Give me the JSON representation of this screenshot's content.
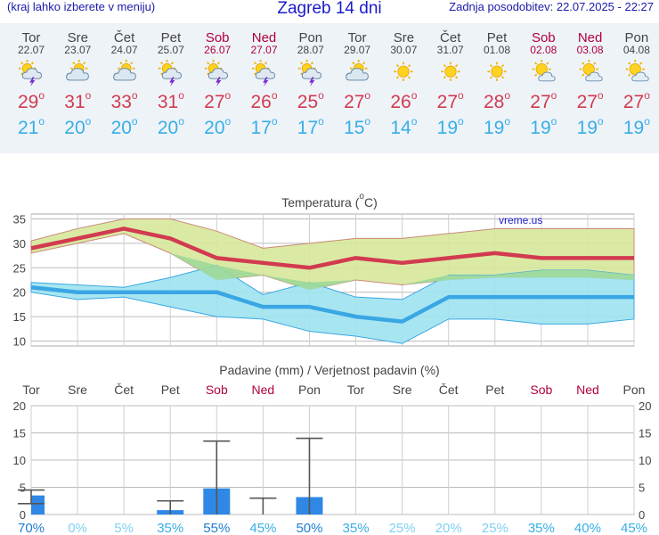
{
  "header": {
    "left_link": "(kraj lahko izberete v meniju)",
    "title": "Zagreb 14 dni",
    "updated": "Zadnja posodobitev: 22.07.2025 - 22:27"
  },
  "days": [
    {
      "name": "Tor",
      "date": "22.07",
      "weekend": false,
      "icon": "thunderstorm-sun-icon",
      "tmax": "29",
      "tmin": "21"
    },
    {
      "name": "Sre",
      "date": "23.07",
      "weekend": false,
      "icon": "cloudy-sun-icon",
      "tmax": "31",
      "tmin": "20"
    },
    {
      "name": "Čet",
      "date": "24.07",
      "weekend": false,
      "icon": "cloudy-sun-icon",
      "tmax": "33",
      "tmin": "20"
    },
    {
      "name": "Pet",
      "date": "25.07",
      "weekend": false,
      "icon": "thunderstorm-sun-icon",
      "tmax": "31",
      "tmin": "20"
    },
    {
      "name": "Sob",
      "date": "26.07",
      "weekend": true,
      "icon": "thunderstorm-sun-icon",
      "tmax": "27",
      "tmin": "20"
    },
    {
      "name": "Ned",
      "date": "27.07",
      "weekend": true,
      "icon": "thunderstorm-sun-icon",
      "tmax": "26",
      "tmin": "17"
    },
    {
      "name": "Pon",
      "date": "28.07",
      "weekend": false,
      "icon": "thunderstorm-sun-icon",
      "tmax": "25",
      "tmin": "17"
    },
    {
      "name": "Tor",
      "date": "29.07",
      "weekend": false,
      "icon": "cloudy-sun-icon",
      "tmax": "27",
      "tmin": "15"
    },
    {
      "name": "Sre",
      "date": "30.07",
      "weekend": false,
      "icon": "sun-icon",
      "tmax": "26",
      "tmin": "14"
    },
    {
      "name": "Čet",
      "date": "31.07",
      "weekend": false,
      "icon": "sun-icon",
      "tmax": "27",
      "tmin": "19"
    },
    {
      "name": "Pet",
      "date": "01.08",
      "weekend": false,
      "icon": "sun-icon",
      "tmax": "28",
      "tmin": "19"
    },
    {
      "name": "Sob",
      "date": "02.08",
      "weekend": true,
      "icon": "partly-cloudy-sun-icon",
      "tmax": "27",
      "tmin": "19"
    },
    {
      "name": "Ned",
      "date": "03.08",
      "weekend": true,
      "icon": "partly-cloudy-sun-icon",
      "tmax": "27",
      "tmin": "19"
    },
    {
      "name": "Pon",
      "date": "04.08",
      "weekend": false,
      "icon": "partly-cloudy-sun-icon",
      "tmax": "27",
      "tmin": "19"
    }
  ],
  "degree_symbol": "o",
  "temp_chart": {
    "title": "Temperatura (",
    "title_deg": "o",
    "title_unit": "C)",
    "watermark": "vreme.us"
  },
  "precip_chart": {
    "title": "Padavine (mm) / Verjetnost padavin (%)"
  },
  "colors": {
    "tmax_line": "#d23b4f",
    "tmin_line": "#3aa6e4",
    "tmax_band": "#d6e89a",
    "tmin_band": "#9de3ef",
    "overlap_band": "#9ed898",
    "bar": "#2f88e6",
    "prob_high": "#1f7ed0",
    "prob_low": "#7fd0f2",
    "weekend": "#b0003a"
  },
  "chart_data": [
    {
      "type": "line",
      "title": "Temperatura (°C)",
      "categories": [
        "22.07",
        "23.07",
        "24.07",
        "25.07",
        "26.07",
        "27.07",
        "28.07",
        "29.07",
        "30.07",
        "31.07",
        "01.08",
        "02.08",
        "03.08",
        "04.08"
      ],
      "ylim": [
        9,
        36
      ],
      "yticks": [
        10,
        15,
        20,
        25,
        30,
        35
      ],
      "grid": true,
      "series": [
        {
          "name": "tmax",
          "values": [
            29,
            31,
            33,
            31,
            27,
            26,
            25,
            27,
            26,
            27,
            28,
            27,
            27,
            27
          ]
        },
        {
          "name": "tmax_high",
          "values": [
            30.5,
            33,
            35,
            35,
            32.5,
            29,
            30,
            31,
            31,
            32,
            33,
            33,
            33,
            33
          ]
        },
        {
          "name": "tmax_low",
          "values": [
            28,
            30,
            32,
            28,
            22.5,
            23.5,
            20.5,
            22.5,
            21.5,
            22.5,
            23,
            23,
            23,
            22.5
          ]
        },
        {
          "name": "tmin",
          "values": [
            21,
            20,
            20,
            20,
            20,
            17,
            17,
            15,
            14,
            19,
            19,
            19,
            19,
            19
          ]
        },
        {
          "name": "tmin_high",
          "values": [
            22,
            21.5,
            21,
            23,
            25.5,
            19.5,
            22,
            19,
            18.5,
            23.5,
            23.5,
            24.5,
            24.5,
            23.5
          ]
        },
        {
          "name": "tmin_low",
          "values": [
            20,
            18.5,
            19,
            17,
            15,
            14.5,
            12,
            11,
            9.5,
            14.5,
            14.5,
            13.5,
            13.5,
            14.5
          ]
        }
      ]
    },
    {
      "type": "bar",
      "title": "Padavine (mm) / Verjetnost padavin (%)",
      "categories": [
        "Tor",
        "Sre",
        "Čet",
        "Pet",
        "Sob",
        "Ned",
        "Pon",
        "Tor",
        "Sre",
        "Čet",
        "Pet",
        "Sob",
        "Ned",
        "Pon"
      ],
      "weekend": [
        false,
        false,
        false,
        false,
        true,
        true,
        false,
        false,
        false,
        false,
        false,
        true,
        true,
        false
      ],
      "ylim": [
        0,
        20
      ],
      "yticks": [
        0,
        5,
        10,
        15,
        20
      ],
      "grid": true,
      "values": [
        3.5,
        0,
        0,
        0.8,
        4.8,
        0,
        3.2,
        0,
        0,
        0,
        0,
        0,
        0,
        0
      ],
      "error_high": [
        4.5,
        0,
        0,
        2.5,
        13.5,
        3,
        14,
        0,
        0,
        0,
        0,
        0,
        0,
        0
      ],
      "error_low": [
        2,
        0,
        0,
        0,
        0,
        0,
        0,
        0,
        0,
        0,
        0,
        0,
        0,
        0
      ],
      "probability": [
        "70%",
        "0%",
        "5%",
        "35%",
        "55%",
        "45%",
        "50%",
        "35%",
        "25%",
        "20%",
        "25%",
        "35%",
        "40%",
        "45%"
      ]
    }
  ]
}
